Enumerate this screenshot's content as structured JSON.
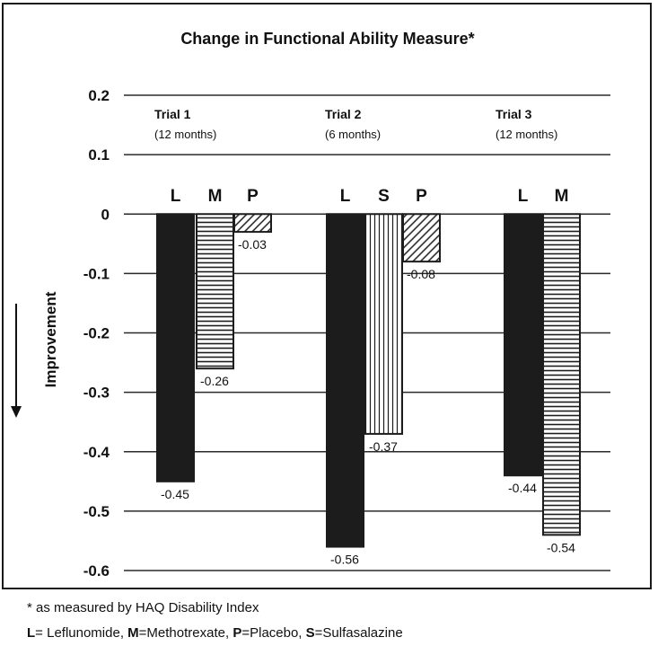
{
  "chart_data": {
    "type": "bar",
    "title": "Change in Functional Ability Measure*",
    "ylabel": "Improvement",
    "ylim": [
      -0.6,
      0.2
    ],
    "yticks": [
      "0.2",
      "0.1",
      "0",
      "-0.1",
      "-0.2",
      "-0.3",
      "-0.4",
      "-0.5",
      "-0.6"
    ],
    "ytick_values": [
      0.2,
      0.1,
      0,
      -0.1,
      -0.2,
      -0.3,
      -0.4,
      -0.5,
      -0.6
    ],
    "grid": true,
    "groups": [
      {
        "title": "Trial 1",
        "subtitle": "(12 months)",
        "bars": [
          {
            "letter": "L",
            "value": -0.45,
            "label": "-0.45",
            "fill": "solid"
          },
          {
            "letter": "M",
            "value": -0.26,
            "label": "-0.26",
            "fill": "horizontal-lines"
          },
          {
            "letter": "P",
            "value": -0.03,
            "label": "-0.03",
            "fill": "diagonal-hatch"
          }
        ]
      },
      {
        "title": "Trial 2",
        "subtitle": "(6 months)",
        "bars": [
          {
            "letter": "L",
            "value": -0.56,
            "label": "-0.56",
            "fill": "solid"
          },
          {
            "letter": "S",
            "value": -0.37,
            "label": "-0.37",
            "fill": "vertical-lines"
          },
          {
            "letter": "P",
            "value": -0.08,
            "label": "-0.08",
            "fill": "diagonal-hatch"
          }
        ]
      },
      {
        "title": "Trial 3",
        "subtitle": "(12 months)",
        "bars": [
          {
            "letter": "L",
            "value": -0.44,
            "label": "-0.44",
            "fill": "solid"
          },
          {
            "letter": "M",
            "value": -0.54,
            "label": "-0.54",
            "fill": "horizontal-lines"
          }
        ]
      }
    ]
  },
  "colors": {
    "bar_dark": "#1c1c1c",
    "grid": "#2a2a2a",
    "text": "#111111"
  },
  "footnotes": {
    "asterisk_note": "* as measured by HAQ Disability Index",
    "legend": [
      {
        "key": "L",
        "text": "= Leflunomide, "
      },
      {
        "key": "M",
        "text": "=Methotrexate, "
      },
      {
        "key": "P",
        "text": "=Placebo, "
      },
      {
        "key": "S",
        "text": "=Sulfasalazine"
      }
    ]
  }
}
